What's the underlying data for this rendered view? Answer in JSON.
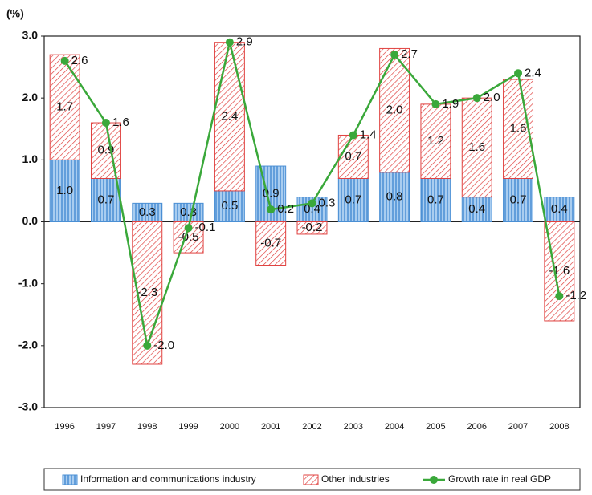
{
  "chart_data": {
    "type": "bar",
    "y_label": "(%)",
    "categories": [
      "1996",
      "1997",
      "1998",
      "1999",
      "2000",
      "2001",
      "2002",
      "2003",
      "2004",
      "2005",
      "2006",
      "2007",
      "2008"
    ],
    "series": [
      {
        "name": "Information and communications industry",
        "type": "bar",
        "color": "#4a8fd4",
        "values": [
          1.0,
          0.7,
          0.3,
          0.3,
          0.5,
          0.9,
          0.4,
          0.7,
          0.8,
          0.7,
          0.4,
          0.7,
          0.4
        ],
        "value_labels": [
          "1.0",
          "0.7",
          "0.3",
          "0.3",
          "0.5",
          "0.9",
          "0.4",
          "0.7",
          "0.8",
          "0.7",
          "0.4",
          "0.7",
          "0.4"
        ]
      },
      {
        "name": "Other industries",
        "type": "bar",
        "color": "#e0413f",
        "values": [
          1.7,
          0.9,
          -2.3,
          -0.5,
          2.4,
          -0.7,
          -0.2,
          0.7,
          2.0,
          1.2,
          1.6,
          1.6,
          -1.6
        ],
        "value_labels": [
          "1.7",
          "0.9",
          "-2.3",
          "-0.5",
          "2.4",
          "-0.7",
          "-0.2",
          "0.7",
          "2.0",
          "1.2",
          "1.6",
          "1.6",
          "-1.6"
        ]
      },
      {
        "name": "Growth rate in real GDP",
        "type": "line",
        "color": "#3aa83a",
        "values": [
          2.6,
          1.6,
          -2.0,
          -0.1,
          2.9,
          0.2,
          0.3,
          1.4,
          2.7,
          1.9,
          2.0,
          2.4,
          -1.2
        ],
        "value_labels": [
          "2.6",
          "1.6",
          "-2.0",
          "-0.1",
          "2.9",
          "0.2",
          "0.3",
          "1.4",
          "2.7",
          "1.9",
          "2.0",
          "2.4",
          "-1.2"
        ]
      }
    ],
    "ylim": [
      -3,
      3
    ],
    "yticks": [
      {
        "value": -3,
        "label": "-3.0"
      },
      {
        "value": -2,
        "label": "-2.0"
      },
      {
        "value": -1,
        "label": "-1.0"
      },
      {
        "value": 0,
        "label": "0.0"
      },
      {
        "value": 1,
        "label": "1.0"
      },
      {
        "value": 2,
        "label": "2.0"
      },
      {
        "value": 3,
        "label": "3.0"
      }
    ],
    "legend": "bottom"
  }
}
